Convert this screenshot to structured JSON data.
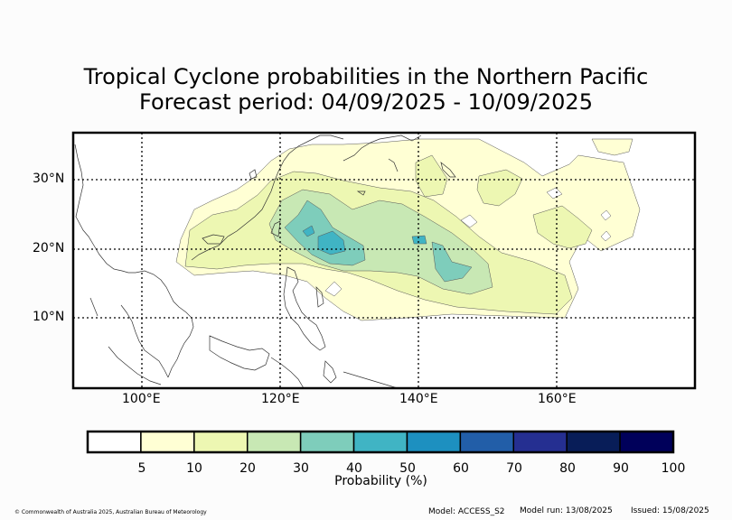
{
  "title_line1": "Tropical Cyclone probabilities in the Northern Pacific",
  "title_line2": "Forecast period: 04/09/2025 - 10/09/2025",
  "map": {
    "lat_labels": [
      "30°N",
      "20°N",
      "10°N"
    ],
    "lon_labels": [
      "100°E",
      "120°E",
      "140°E",
      "160°E"
    ],
    "lon_range": [
      90,
      180
    ],
    "lat_range": [
      0,
      37
    ]
  },
  "colorbar": {
    "label": "Probability (%)",
    "ticks": [
      "5",
      "10",
      "20",
      "30",
      "40",
      "50",
      "60",
      "70",
      "80",
      "90",
      "100"
    ],
    "colors": [
      "#ffffff",
      "#ffffd4",
      "#edf7b2",
      "#c8e8b4",
      "#7ecdbb",
      "#40b4c4",
      "#1d90c0",
      "#225ea8",
      "#252f91",
      "#081d58",
      "#00005a"
    ]
  },
  "footer": {
    "copyright": "© Commonwealth of Australia 2025, Australian Bureau of Meteorology",
    "model": "Model: ACCESS_S2",
    "model_run": "Model run: 13/08/2025",
    "issued": "Issued: 15/08/2025"
  }
}
